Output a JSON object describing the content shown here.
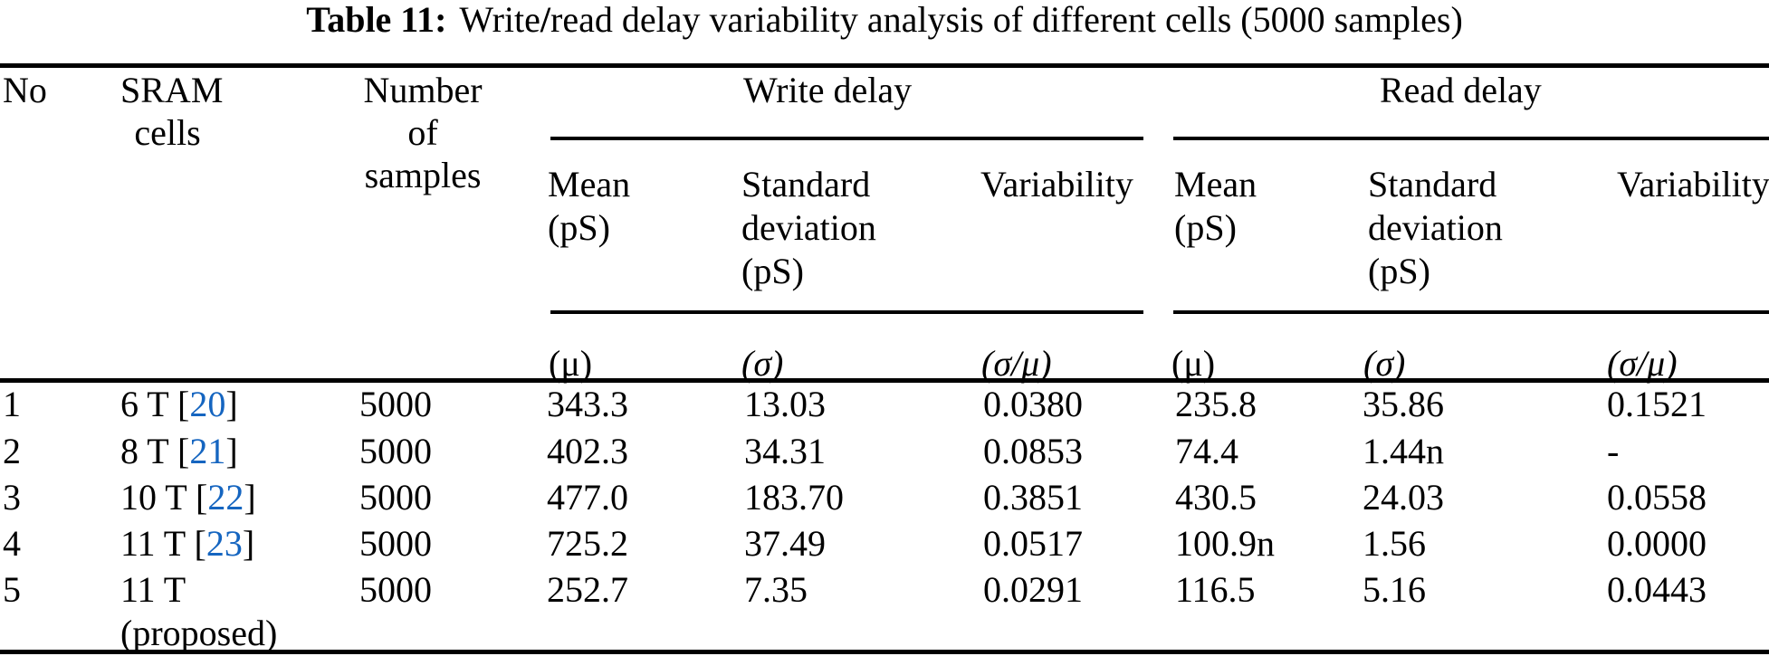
{
  "page": {
    "background": "#ffffff",
    "text_color": "#000000",
    "citation_color": "#1565c0"
  },
  "caption": {
    "label": "Table 11:",
    "part1": "Write",
    "slash": "/",
    "part2": "read delay variability analysis of different cells (5000 samples)"
  },
  "columns": {
    "no": "No",
    "sram": [
      "SRAM",
      "cells"
    ],
    "samples": [
      "Number",
      "of",
      "samples"
    ],
    "write_group": "Write delay",
    "read_group": "Read delay",
    "write": {
      "mean": [
        "Mean",
        "(pS)"
      ],
      "sd": [
        "Standard",
        "deviation",
        "(pS)"
      ],
      "variability": "Variability",
      "mean_sym": "(μ)",
      "sd_sym": "(σ)",
      "var_sym": "(σ/μ)"
    },
    "read": {
      "mean": [
        "Mean",
        "(pS)"
      ],
      "sd": [
        "Standard",
        "deviation",
        "(pS)"
      ],
      "variability": "Variability",
      "mean_sym": "(μ)",
      "sd_sym": "(σ)",
      "var_sym": "(σ/μ)"
    }
  },
  "rows": [
    {
      "no": "1",
      "cell_pre": "6 T [",
      "cite": "20",
      "cell_post": "]",
      "samples": "5000",
      "w_mean": "343.3",
      "w_sd": "13.03",
      "w_var": "0.0380",
      "r_mean": "235.8",
      "r_sd": "35.86",
      "r_var": "0.1521"
    },
    {
      "no": "2",
      "cell_pre": "8 T [",
      "cite": "21",
      "cell_post": "]",
      "samples": "5000",
      "w_mean": "402.3",
      "w_sd": "34.31",
      "w_var": "0.0853",
      "r_mean": "74.4",
      "r_sd": "1.44n",
      "r_var": "-"
    },
    {
      "no": "3",
      "cell_pre": "10 T [",
      "cite": "22",
      "cell_post": "]",
      "samples": "5000",
      "w_mean": "477.0",
      "w_sd": "183.70",
      "w_var": "0.3851",
      "r_mean": "430.5",
      "r_sd": "24.03",
      "r_var": "0.0558"
    },
    {
      "no": "4",
      "cell_pre": "11 T [",
      "cite": "23",
      "cell_post": "]",
      "samples": "5000",
      "w_mean": "725.2",
      "w_sd": "37.49",
      "w_var": "0.0517",
      "r_mean": "100.9n",
      "r_sd": "1.56",
      "r_var": "0.0000"
    },
    {
      "no": "5",
      "cell_pre": "11 T",
      "cell_line2": "(proposed)",
      "samples": "5000",
      "w_mean": "252.7",
      "w_sd": "7.35",
      "w_var": "0.0291",
      "r_mean": "116.5",
      "r_sd": "5.16",
      "r_var": "0.0443"
    }
  ]
}
